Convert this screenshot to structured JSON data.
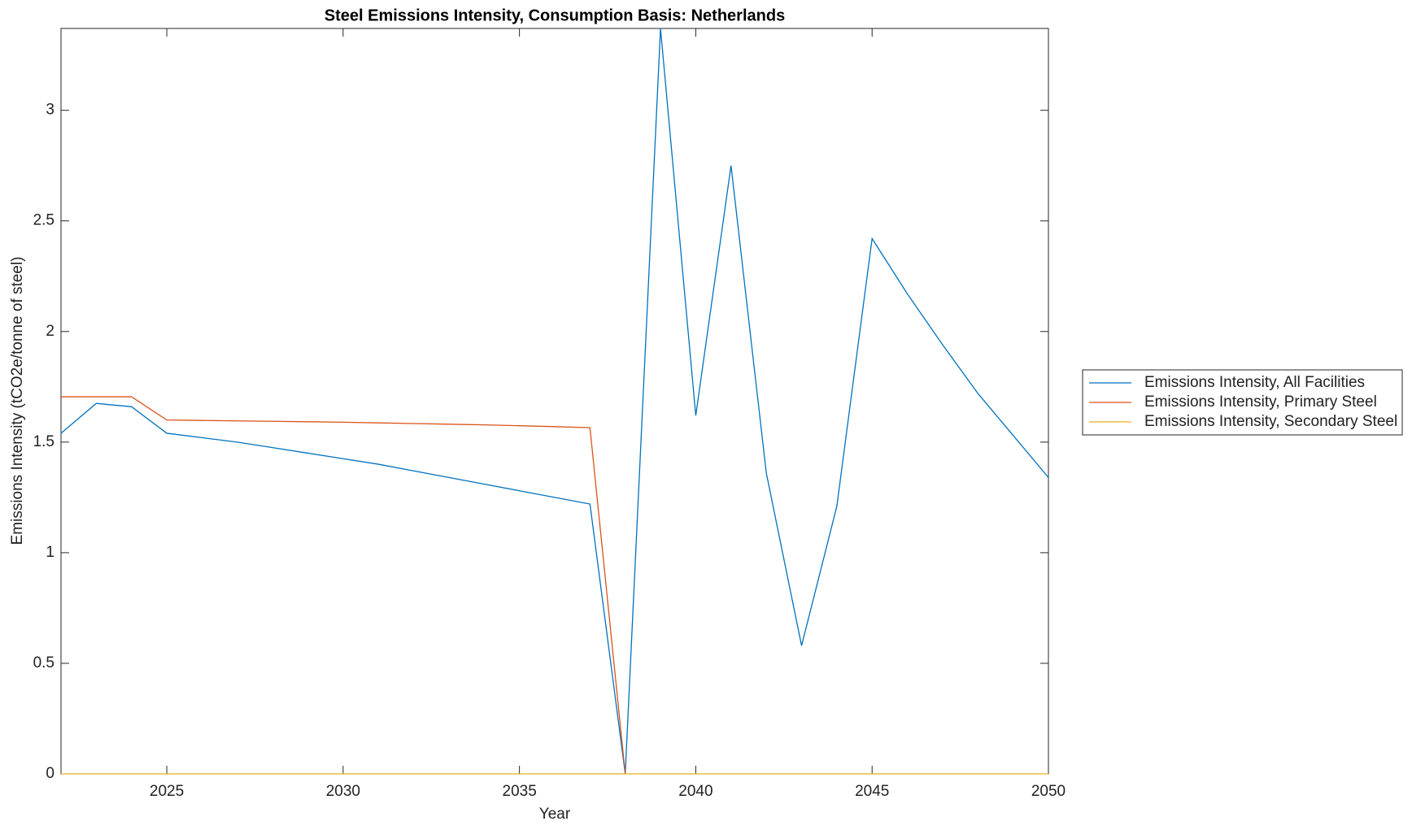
{
  "chart_data": {
    "type": "line",
    "title": "Steel Emissions Intensity, Consumption Basis: Netherlands",
    "x_label": "Year",
    "y_label": "Emissions Intensity (tCO2e/tonne of steel)",
    "x": [
      2022,
      2023,
      2024,
      2025,
      2026,
      2027,
      2028,
      2029,
      2030,
      2031,
      2032,
      2033,
      2034,
      2035,
      2036,
      2037,
      2038,
      2039,
      2040,
      2041,
      2042,
      2043,
      2044,
      2045,
      2046,
      2047,
      2048,
      2049,
      2050
    ],
    "series": [
      {
        "name": "Emissions Intensity, All Facilities",
        "color": "#0072bd",
        "values": [
          1.54,
          1.675,
          1.66,
          1.54,
          1.52,
          1.5,
          1.475,
          1.45,
          1.425,
          1.4,
          1.37,
          1.34,
          1.31,
          1.28,
          1.25,
          1.22,
          0,
          3.37,
          1.62,
          2.75,
          1.36,
          0.58,
          1.21,
          2.42,
          2.17,
          1.94,
          1.72,
          1.53,
          1.34
        ]
      },
      {
        "name": "Emissions Intensity, Primary Steel",
        "color": "#d95319",
        "values": [
          1.705,
          1.705,
          1.705,
          1.6,
          1.598,
          1.596,
          1.594,
          1.592,
          1.59,
          1.587,
          1.584,
          1.581,
          1.578,
          1.574,
          1.57,
          1.565,
          0,
          null,
          null,
          null,
          null,
          null,
          null,
          null,
          null,
          null,
          null,
          null,
          null
        ]
      },
      {
        "name": "Emissions Intensity, Secondary Steel",
        "color": "#edb120",
        "values": [
          0,
          0,
          0,
          0,
          0,
          0,
          0,
          0,
          0,
          0,
          0,
          0,
          0,
          0,
          0,
          0,
          0,
          0,
          0,
          0,
          0,
          0,
          0,
          0,
          0,
          0,
          0,
          0,
          0
        ]
      }
    ],
    "xlim": [
      2022,
      2050
    ],
    "xticks": [
      2025,
      2030,
      2035,
      2040,
      2045,
      2050
    ],
    "ylim": [
      0,
      3.37
    ],
    "yticks": [
      0,
      0.5,
      1,
      1.5,
      2,
      2.5,
      3
    ],
    "legend_position": "right"
  }
}
